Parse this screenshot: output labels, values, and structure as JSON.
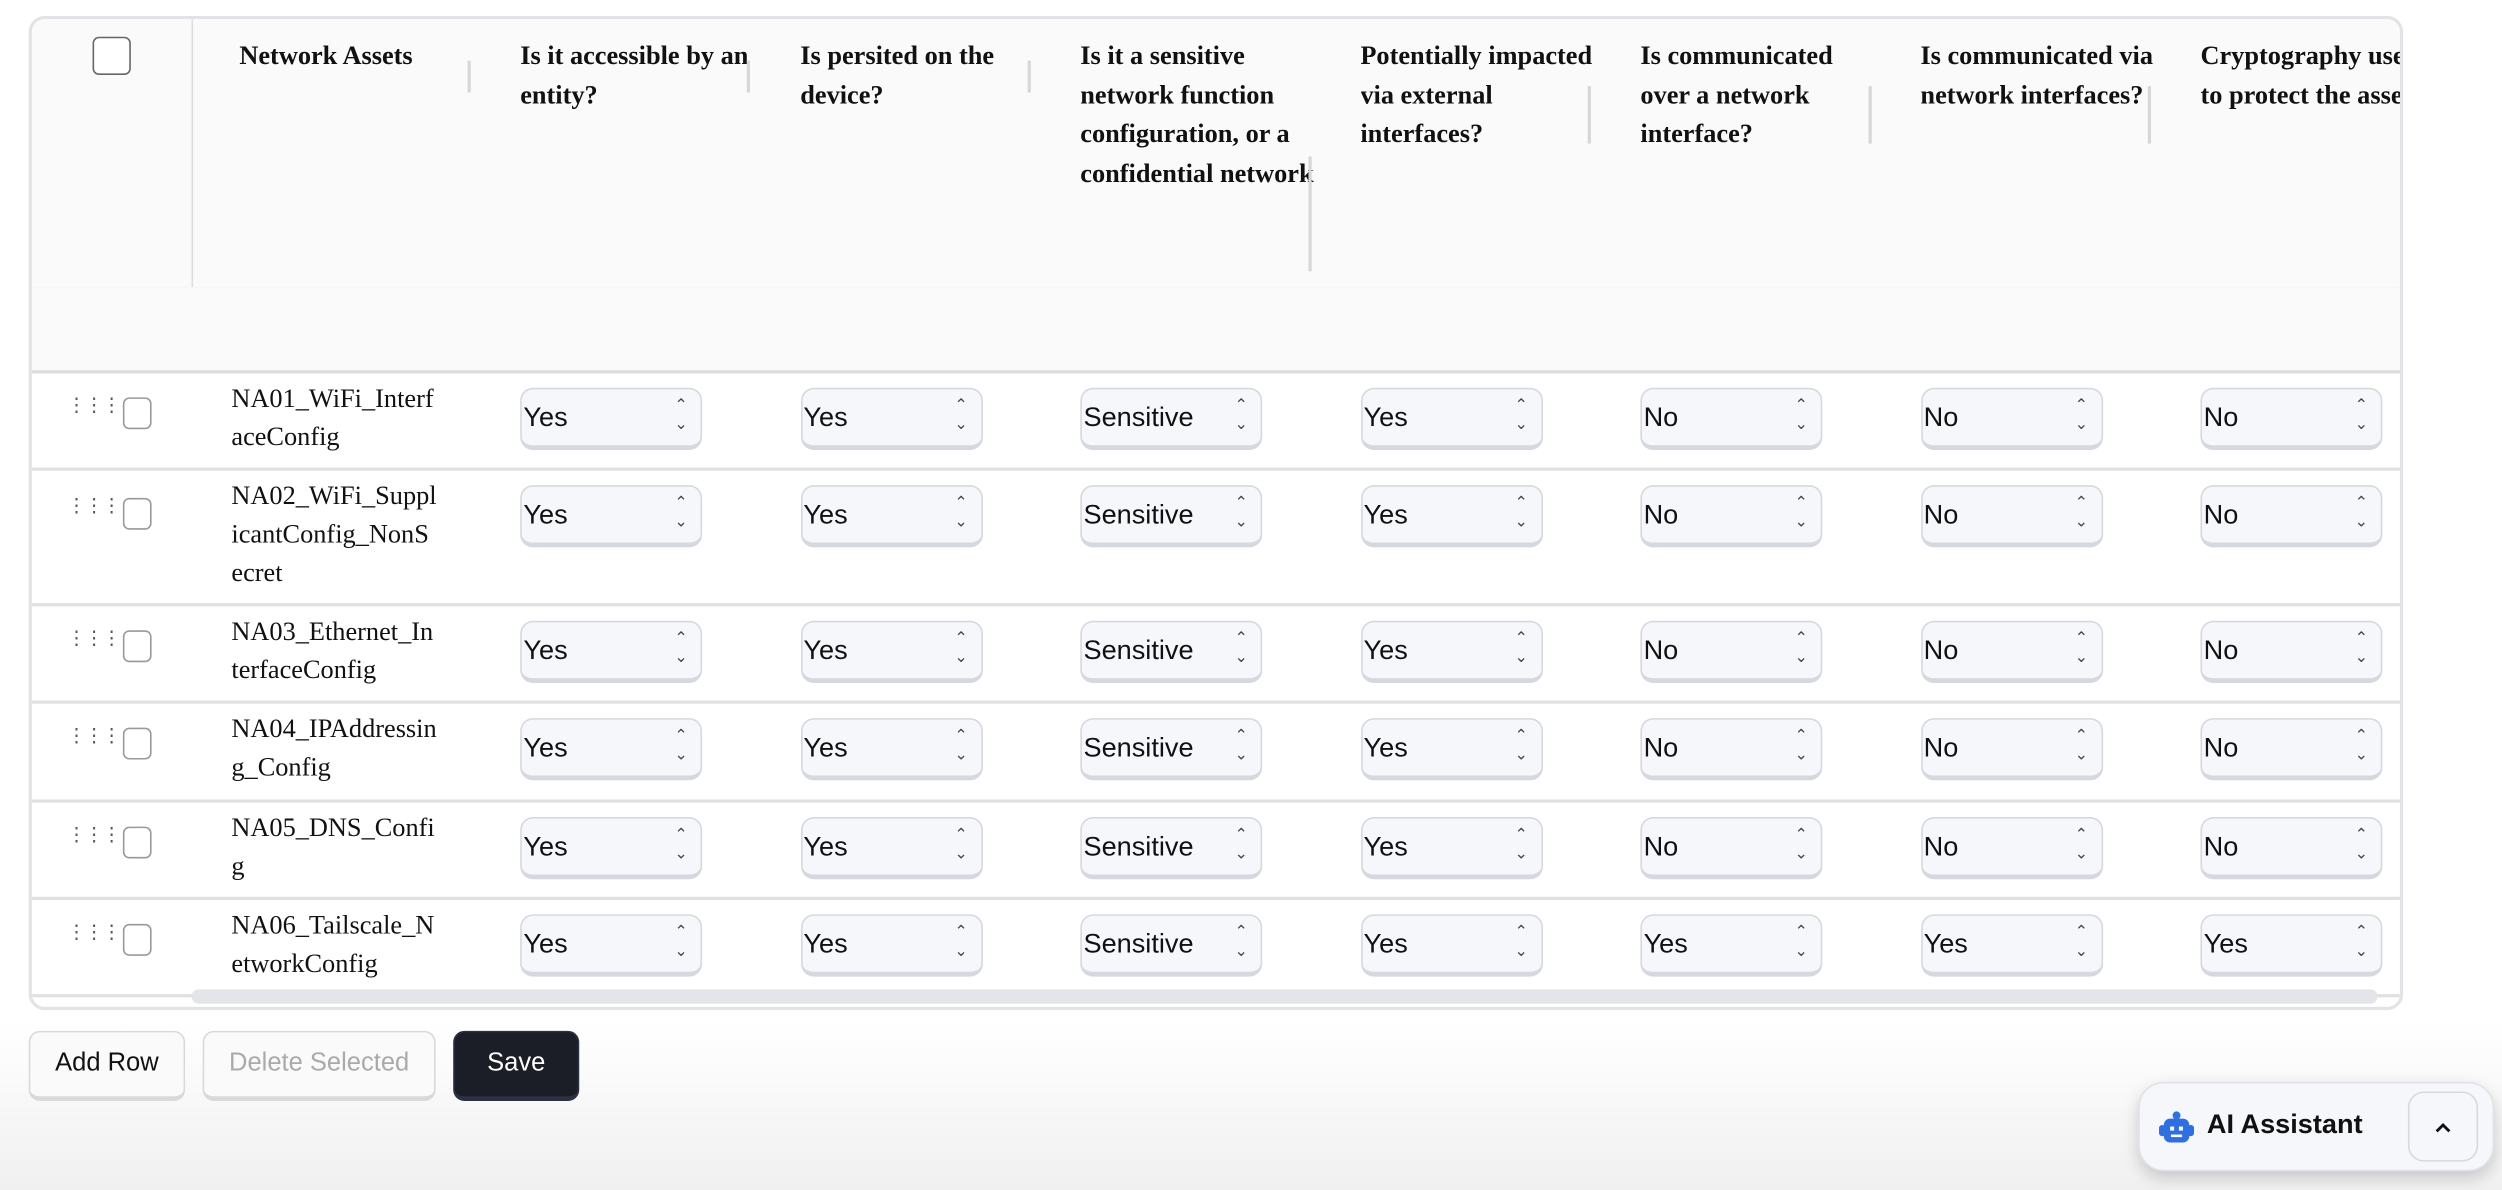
{
  "table": {
    "columns": [
      "Network Assets",
      "Is it accessible by an entity?",
      "Is persited on the device?",
      "Is it a sensitive network function configuration, or a confidential network",
      "Potentially impacted via external interfaces?",
      "Is communicated over a network interface?",
      "Is communicated via network interfaces?",
      "Cryptography used to protect the asset"
    ],
    "rows": [
      {
        "asset": "NA01_WiFi_InterfaceConfig",
        "values": [
          "Yes",
          "Yes",
          "Sensitive",
          "Yes",
          "No",
          "No",
          "No"
        ]
      },
      {
        "asset": "NA02_WiFi_SupplicantConfig_NonSecret",
        "values": [
          "Yes",
          "Yes",
          "Sensitive",
          "Yes",
          "No",
          "No",
          "No"
        ]
      },
      {
        "asset": "NA03_Ethernet_InterfaceConfig",
        "values": [
          "Yes",
          "Yes",
          "Sensitive",
          "Yes",
          "No",
          "No",
          "No"
        ]
      },
      {
        "asset": "NA04_IPAddressing_Config",
        "values": [
          "Yes",
          "Yes",
          "Sensitive",
          "Yes",
          "No",
          "No",
          "No"
        ]
      },
      {
        "asset": "NA05_DNS_Config",
        "values": [
          "Yes",
          "Yes",
          "Sensitive",
          "Yes",
          "No",
          "No",
          "No"
        ]
      },
      {
        "asset": "NA06_Tailscale_NetworkConfig",
        "values": [
          "Yes",
          "Yes",
          "Sensitive",
          "Yes",
          "Yes",
          "Yes",
          "Yes"
        ]
      }
    ]
  },
  "actions": {
    "add_row": "Add Row",
    "delete_selected": "Delete Selected",
    "save": "Save"
  },
  "assistant": {
    "label": "AI Assistant",
    "icon": "robot-icon",
    "toggle_icon": "chevron-up-icon",
    "accent": "#2f6fe0"
  },
  "colors": {
    "save_bg": "#1b1d27",
    "disabled_text": "#aaaaaa"
  }
}
